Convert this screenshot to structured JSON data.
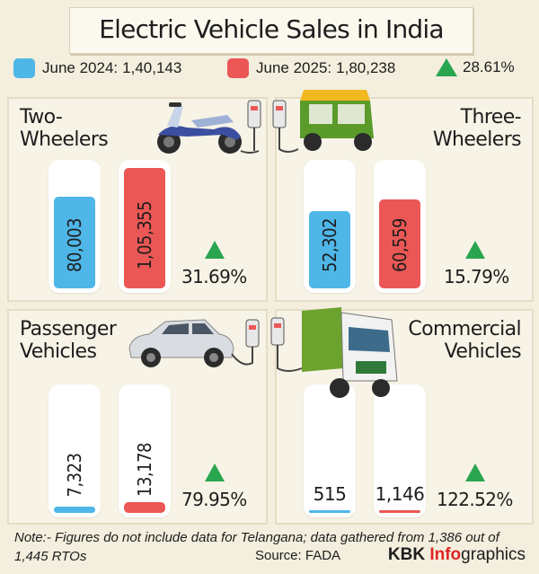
{
  "title": "Electric Vehicle Sales in India",
  "legend": {
    "june2024_label": "June 2024:",
    "june2024_value": "1,40,143",
    "june2025_label": "June 2025:",
    "june2025_value": "1,80,238",
    "growth": "28.61%"
  },
  "colors": {
    "june2024": "#4fb6e8",
    "june2025": "#ea5755",
    "growth": "#2aa54f"
  },
  "chart_data": [
    {
      "type": "bar",
      "title_line1": "Two-",
      "title_line2": "Wheelers",
      "categories": [
        "June 2024",
        "June 2025"
      ],
      "values": [
        80003,
        105355
      ],
      "labels": [
        "80,003",
        "1,05,355"
      ],
      "growth": "31.69%"
    },
    {
      "type": "bar",
      "title_line1": "Three-",
      "title_line2": "Wheelers",
      "categories": [
        "June 2024",
        "June 2025"
      ],
      "values": [
        52302,
        60559
      ],
      "labels": [
        "52,302",
        "60,559"
      ],
      "growth": "15.79%"
    },
    {
      "type": "bar",
      "title_line1": "Passenger",
      "title_line2": "Vehicles",
      "categories": [
        "June 2024",
        "June 2025"
      ],
      "values": [
        7323,
        13178
      ],
      "labels": [
        "7,323",
        "13,178"
      ],
      "growth": "79.95%"
    },
    {
      "type": "bar",
      "title_line1": "Commercial",
      "title_line2": "Vehicles",
      "categories": [
        "June 2024",
        "June 2025"
      ],
      "values": [
        515,
        1146
      ],
      "labels": [
        "515",
        "1,146"
      ],
      "growth": "122.52%"
    }
  ],
  "footer": {
    "note": "Note:- Figures do not include data for Telangana; data gathered from 1,386 out of 1,445 RTOs",
    "source": "Source: FADA",
    "brand_kbk": "KBK",
    "brand_info": "Info",
    "brand_graphics": "graphics"
  }
}
